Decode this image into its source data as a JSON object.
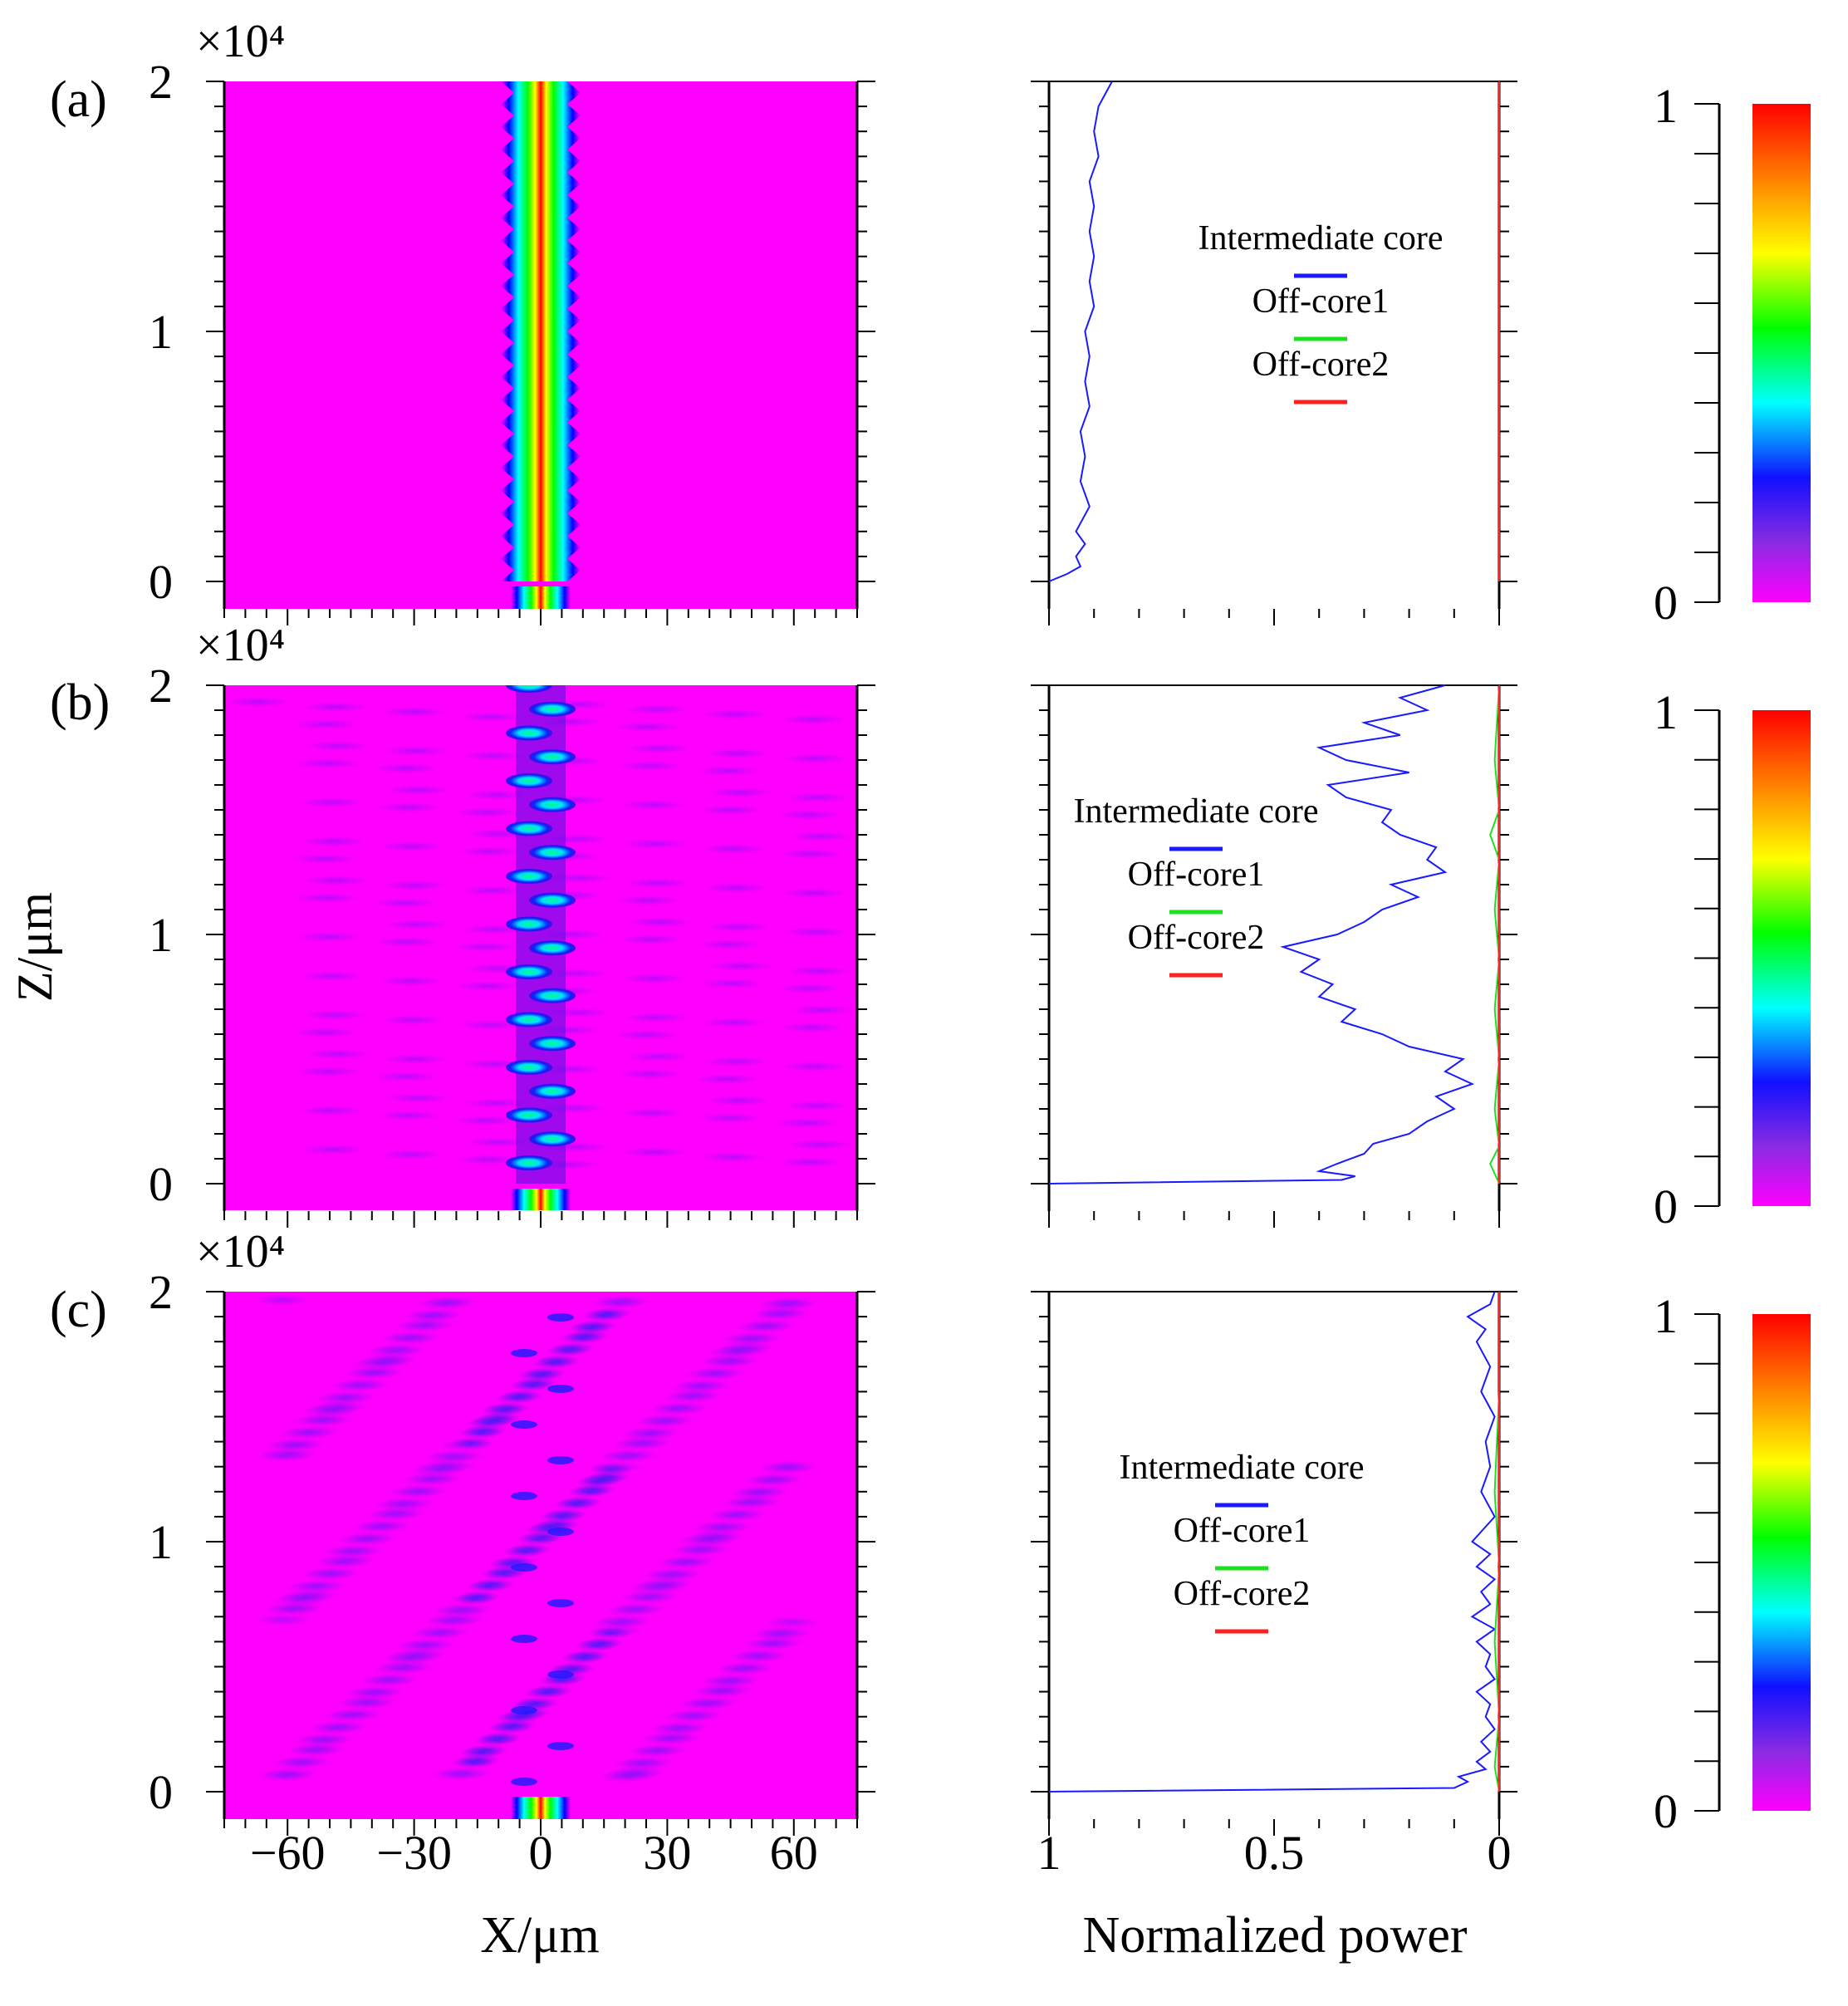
{
  "figure": {
    "y_axis_label": "Z/μm",
    "x_axis_label": "X/μm",
    "power_axis_label": "Normalized power",
    "x_ticks": [
      "−60",
      "−30",
      "0",
      "30",
      "60"
    ],
    "power_ticks": [
      "1",
      "0.5",
      "0"
    ],
    "z_ticks": [
      "0",
      "1",
      "2"
    ],
    "z_multiplier": "×10⁴",
    "colorbar_ticks": [
      "0",
      "1"
    ],
    "colorbar_range": [
      0,
      1
    ],
    "colors": {
      "intermediate_core": "#1a1aff",
      "off_core1": "#1fe01f",
      "off_core2": "#ff2020",
      "background_field": "#ff00ff"
    }
  },
  "chart_data": [
    {
      "panel": "(a)",
      "type": "heatmap",
      "title": "",
      "xlabel": "X/μm",
      "ylabel": "Z/μm",
      "xlim": [
        -75,
        75
      ],
      "ylim": [
        0,
        20000
      ],
      "field_pattern": "guided",
      "power_plot": {
        "type": "line",
        "xlabel": "Normalized power",
        "xlim": [
          1,
          0
        ],
        "ylim": [
          0,
          20000
        ],
        "legend": [
          "Intermediate core",
          "Off-core1",
          "Off-core2"
        ],
        "legend_position": "top-center",
        "series": [
          {
            "name": "Intermediate core",
            "color": "#1a1aff",
            "z": [
              0,
              300,
              600,
              1000,
              1500,
              2000,
              3000,
              4000,
              5000,
              6000,
              7000,
              8000,
              9000,
              10000,
              11000,
              12000,
              13000,
              14000,
              15000,
              16000,
              17000,
              18000,
              19000,
              20000
            ],
            "values": [
              1.0,
              0.96,
              0.93,
              0.94,
              0.92,
              0.94,
              0.91,
              0.93,
              0.92,
              0.93,
              0.91,
              0.92,
              0.91,
              0.92,
              0.9,
              0.91,
              0.9,
              0.91,
              0.9,
              0.91,
              0.89,
              0.9,
              0.89,
              0.86
            ]
          },
          {
            "name": "Off-core1",
            "color": "#1fe01f",
            "z": [
              0,
              20000
            ],
            "values": [
              0.0,
              0.0
            ]
          },
          {
            "name": "Off-core2",
            "color": "#ff2020",
            "z": [
              0,
              20000
            ],
            "values": [
              0.0,
              0.0
            ]
          }
        ]
      }
    },
    {
      "panel": "(b)",
      "type": "heatmap",
      "title": "",
      "xlabel": "X/μm",
      "ylabel": "Z/μm",
      "xlim": [
        -75,
        75
      ],
      "ylim": [
        0,
        20000
      ],
      "field_pattern": "periodic-leaky",
      "power_plot": {
        "type": "line",
        "xlabel": "Normalized power",
        "xlim": [
          1,
          0
        ],
        "ylim": [
          0,
          20000
        ],
        "legend": [
          "Intermediate core",
          "Off-core1",
          "Off-core2"
        ],
        "legend_position": "upper-left",
        "series": [
          {
            "name": "Intermediate core",
            "color": "#1a1aff",
            "z": [
              0,
              150,
              300,
              500,
              800,
              1200,
              1600,
              2000,
              2500,
              3000,
              3500,
              4000,
              4500,
              5000,
              5500,
              6000,
              6500,
              7000,
              7500,
              8000,
              8500,
              9000,
              9500,
              10000,
              10500,
              11000,
              11500,
              12000,
              12500,
              13000,
              13500,
              14000,
              14500,
              15000,
              15500,
              16000,
              16500,
              17000,
              17500,
              18000,
              18500,
              19000,
              19500,
              20000
            ],
            "values": [
              1.0,
              0.35,
              0.32,
              0.4,
              0.36,
              0.3,
              0.28,
              0.2,
              0.16,
              0.1,
              0.14,
              0.06,
              0.12,
              0.08,
              0.2,
              0.26,
              0.35,
              0.32,
              0.4,
              0.37,
              0.44,
              0.4,
              0.48,
              0.36,
              0.3,
              0.26,
              0.18,
              0.24,
              0.12,
              0.16,
              0.14,
              0.22,
              0.26,
              0.24,
              0.34,
              0.38,
              0.2,
              0.34,
              0.4,
              0.22,
              0.3,
              0.16,
              0.22,
              0.12
            ]
          },
          {
            "name": "Off-core1",
            "color": "#1fe01f",
            "z": [
              0,
              800,
              1500,
              3000,
              5000,
              7000,
              9000,
              11000,
              13000,
              14000,
              15000,
              17000,
              20000
            ],
            "values": [
              0.0,
              0.02,
              0.0,
              0.01,
              0.0,
              0.01,
              0.0,
              0.01,
              0.0,
              0.02,
              0.0,
              0.01,
              0.0
            ]
          },
          {
            "name": "Off-core2",
            "color": "#ff2020",
            "z": [
              0,
              20000
            ],
            "values": [
              0.0,
              0.0
            ]
          }
        ]
      }
    },
    {
      "panel": "(c)",
      "type": "heatmap",
      "title": "",
      "xlabel": "X/μm",
      "ylabel": "Z/μm",
      "xlim": [
        -75,
        75
      ],
      "ylim": [
        0,
        20000
      ],
      "field_pattern": "radiating",
      "power_plot": {
        "type": "line",
        "xlabel": "Normalized power",
        "xlim": [
          1,
          0
        ],
        "ylim": [
          0,
          20000
        ],
        "legend": [
          "Intermediate core",
          "Off-core1",
          "Off-core2"
        ],
        "legend_position": "center",
        "series": [
          {
            "name": "Intermediate core",
            "color": "#1a1aff",
            "z": [
              0,
              150,
              400,
              600,
              900,
              1200,
              1600,
              2000,
              2500,
              3000,
              3500,
              4000,
              4500,
              5000,
              5500,
              6000,
              6500,
              7000,
              7500,
              8000,
              8500,
              9000,
              9500,
              10000,
              11000,
              12000,
              13000,
              14000,
              15000,
              16000,
              17000,
              18000,
              18500,
              19000,
              19500,
              20000
            ],
            "values": [
              1.0,
              0.1,
              0.07,
              0.09,
              0.03,
              0.05,
              0.02,
              0.04,
              0.01,
              0.03,
              0.02,
              0.05,
              0.01,
              0.03,
              0.02,
              0.05,
              0.01,
              0.06,
              0.02,
              0.04,
              0.01,
              0.05,
              0.02,
              0.06,
              0.01,
              0.04,
              0.02,
              0.03,
              0.01,
              0.04,
              0.02,
              0.05,
              0.03,
              0.07,
              0.02,
              0.01
            ]
          },
          {
            "name": "Off-core1",
            "color": "#1fe01f",
            "z": [
              0,
              1000,
              3000,
              6000,
              9000,
              12000,
              16000,
              20000
            ],
            "values": [
              0.0,
              0.01,
              0.0,
              0.01,
              0.0,
              0.01,
              0.0,
              0.0
            ]
          },
          {
            "name": "Off-core2",
            "color": "#ff2020",
            "z": [
              0,
              20000
            ],
            "values": [
              0.0,
              0.0
            ]
          }
        ]
      }
    }
  ]
}
